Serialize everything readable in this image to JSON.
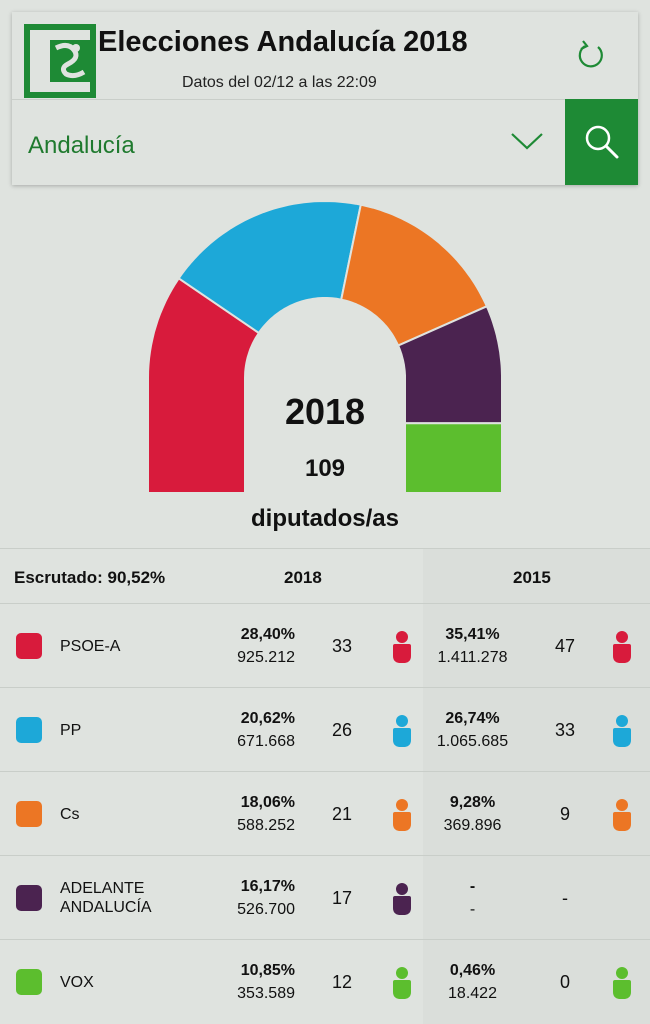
{
  "header": {
    "title": "Elecciones Andalucía 2018",
    "subtitle": "Datos del 02/12 a las 22:09",
    "region": "Andalucía",
    "brand_color": "#1e8a35"
  },
  "summary": {
    "year": "2018",
    "total_seats": "109",
    "seats_caption": "diputados/as"
  },
  "table": {
    "scrutiny": "Escrutado: 90,52%",
    "col_2018": "2018",
    "col_2015": "2015",
    "rows": [
      {
        "party": "PSOE-A",
        "color": "#d81b3c",
        "pct2018": "28,40%",
        "votes2018": "925.212",
        "seats2018": "33",
        "pct2015": "35,41%",
        "votes2015": "1.411.278",
        "seats2015": "47"
      },
      {
        "party": "PP",
        "color": "#1da8d8",
        "pct2018": "20,62%",
        "votes2018": "671.668",
        "seats2018": "26",
        "pct2015": "26,74%",
        "votes2015": "1.065.685",
        "seats2015": "33"
      },
      {
        "party": "Cs",
        "color": "#ec7624",
        "pct2018": "18,06%",
        "votes2018": "588.252",
        "seats2018": "21",
        "pct2015": "9,28%",
        "votes2015": "369.896",
        "seats2015": "9"
      },
      {
        "party": "ADELANTE ANDALUCÍA",
        "color": "#4b2350",
        "pct2018": "16,17%",
        "votes2018": "526.700",
        "seats2018": "17",
        "pct2015": "-",
        "votes2015": "-",
        "seats2015": "-"
      },
      {
        "party": "VOX",
        "color": "#5cbe2e",
        "pct2018": "10,85%",
        "votes2018": "353.589",
        "seats2018": "12",
        "pct2015": "0,46%",
        "votes2015": "18.422",
        "seats2015": "0"
      }
    ]
  },
  "chart_data": {
    "type": "pie",
    "title": "2018",
    "categories": [
      "PSOE-A",
      "PP",
      "Cs",
      "ADELANTE ANDALUCÍA",
      "VOX"
    ],
    "values": [
      33,
      26,
      21,
      17,
      12
    ],
    "colors": [
      "#d81b3c",
      "#1da8d8",
      "#ec7624",
      "#4b2350",
      "#5cbe2e"
    ],
    "total": 109
  }
}
